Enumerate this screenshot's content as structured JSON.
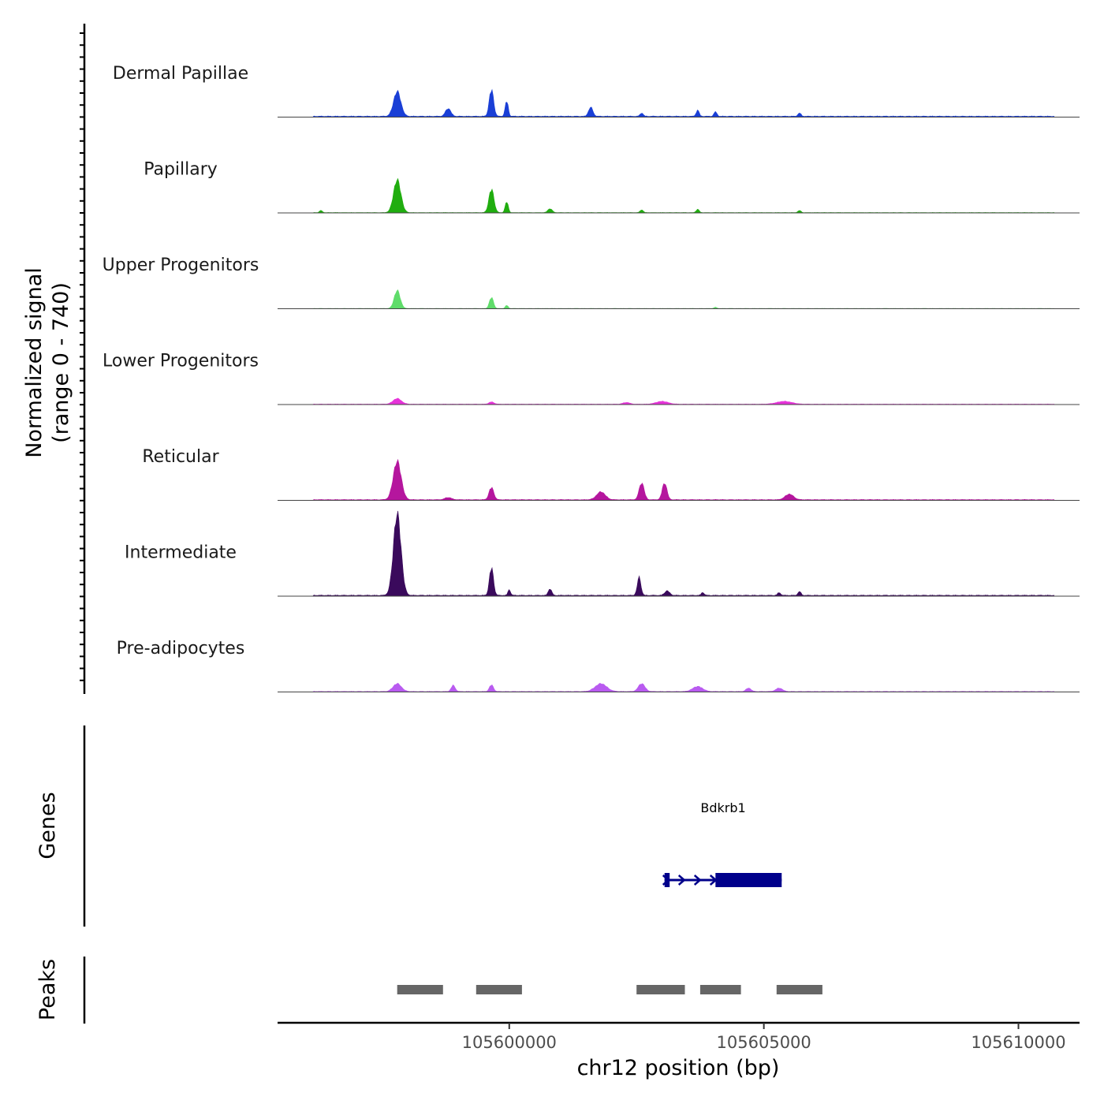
{
  "chart_data": {
    "type": "area",
    "title": "",
    "ylabel": "Normalized signal",
    "ylabel_range": "(range 0 - 740)",
    "ylim": [
      0,
      740
    ],
    "xlabel": "chr12 position (bp)",
    "xlim": [
      105595450,
      105611200
    ],
    "x_ticks": [
      105600000,
      105605000,
      105610000
    ],
    "x_tick_labels": [
      "105600000",
      "105605000",
      "105610000"
    ],
    "tracks": [
      {
        "name": "Dermal Papillae",
        "color": "#1a3fd6",
        "peaks": [
          {
            "x": 105597800,
            "h": 220,
            "w": 220
          },
          {
            "x": 105599650,
            "h": 240,
            "w": 130
          },
          {
            "x": 105599950,
            "h": 140,
            "w": 90
          },
          {
            "x": 105598800,
            "h": 70,
            "w": 160
          },
          {
            "x": 105601600,
            "h": 80,
            "w": 130
          },
          {
            "x": 105603700,
            "h": 55,
            "w": 90
          },
          {
            "x": 105604050,
            "h": 40,
            "w": 90
          },
          {
            "x": 105602600,
            "h": 30,
            "w": 90
          },
          {
            "x": 105605700,
            "h": 30,
            "w": 90
          }
        ],
        "baseline": 10
      },
      {
        "name": "Papillary",
        "color": "#20ad0f",
        "peaks": [
          {
            "x": 105597800,
            "h": 290,
            "w": 220
          },
          {
            "x": 105599650,
            "h": 210,
            "w": 150
          },
          {
            "x": 105599950,
            "h": 100,
            "w": 90
          },
          {
            "x": 105596300,
            "h": 20,
            "w": 80
          },
          {
            "x": 105600800,
            "h": 35,
            "w": 130
          },
          {
            "x": 105602600,
            "h": 25,
            "w": 90
          },
          {
            "x": 105603700,
            "h": 30,
            "w": 90
          },
          {
            "x": 105605700,
            "h": 20,
            "w": 90
          }
        ],
        "baseline": 4
      },
      {
        "name": "Upper Progenitors",
        "color": "#5fdc6a",
        "peaks": [
          {
            "x": 105597800,
            "h": 160,
            "w": 180
          },
          {
            "x": 105599650,
            "h": 100,
            "w": 120
          },
          {
            "x": 105599950,
            "h": 30,
            "w": 80
          },
          {
            "x": 105604050,
            "h": 12,
            "w": 80
          }
        ],
        "baseline": 3
      },
      {
        "name": "Lower Progenitors",
        "color": "#e633d9",
        "peaks": [
          {
            "x": 105597800,
            "h": 50,
            "w": 250
          },
          {
            "x": 105599650,
            "h": 20,
            "w": 150
          },
          {
            "x": 105603000,
            "h": 25,
            "w": 350
          },
          {
            "x": 105605400,
            "h": 25,
            "w": 450
          },
          {
            "x": 105602300,
            "h": 15,
            "w": 200
          }
        ],
        "baseline": 5
      },
      {
        "name": "Reticular",
        "color": "#b5169e",
        "peaks": [
          {
            "x": 105597800,
            "h": 340,
            "w": 240
          },
          {
            "x": 105599650,
            "h": 110,
            "w": 140
          },
          {
            "x": 105601800,
            "h": 70,
            "w": 260
          },
          {
            "x": 105602600,
            "h": 150,
            "w": 150
          },
          {
            "x": 105603050,
            "h": 150,
            "w": 140
          },
          {
            "x": 105605500,
            "h": 50,
            "w": 250
          },
          {
            "x": 105598800,
            "h": 20,
            "w": 200
          }
        ],
        "baseline": 8
      },
      {
        "name": "Intermediate",
        "color": "#3a0a5c",
        "peaks": [
          {
            "x": 105597800,
            "h": 720,
            "w": 230
          },
          {
            "x": 105599650,
            "h": 250,
            "w": 120
          },
          {
            "x": 105600000,
            "h": 50,
            "w": 80
          },
          {
            "x": 105600800,
            "h": 60,
            "w": 100
          },
          {
            "x": 105602550,
            "h": 160,
            "w": 110
          },
          {
            "x": 105603100,
            "h": 40,
            "w": 150
          },
          {
            "x": 105603800,
            "h": 25,
            "w": 90
          },
          {
            "x": 105605700,
            "h": 35,
            "w": 90
          },
          {
            "x": 105605300,
            "h": 25,
            "w": 90
          }
        ],
        "baseline": 10
      },
      {
        "name": "Pre-adipocytes",
        "color": "#b95bf0",
        "peaks": [
          {
            "x": 105597800,
            "h": 70,
            "w": 250
          },
          {
            "x": 105598900,
            "h": 55,
            "w": 120
          },
          {
            "x": 105599650,
            "h": 60,
            "w": 120
          },
          {
            "x": 105601800,
            "h": 70,
            "w": 350
          },
          {
            "x": 105602600,
            "h": 70,
            "w": 200
          },
          {
            "x": 105603700,
            "h": 45,
            "w": 300
          },
          {
            "x": 105604700,
            "h": 30,
            "w": 150
          },
          {
            "x": 105605300,
            "h": 30,
            "w": 200
          }
        ],
        "baseline": 6
      }
    ],
    "genes": [
      {
        "name": "Bdkrb1",
        "color": "#00008b",
        "strand": "+",
        "start": 105603050,
        "end": 105605350,
        "exons": [
          [
            105603050,
            105603150
          ],
          [
            105604050,
            105605350
          ]
        ]
      }
    ],
    "peaks_track": {
      "label": "Peaks",
      "color": "#666666",
      "regions": [
        [
          105597800,
          105598700
        ],
        [
          105599350,
          105600250
        ],
        [
          105602500,
          105603450
        ],
        [
          105603750,
          105604550
        ],
        [
          105605250,
          105606150
        ]
      ]
    },
    "genes_label": "Genes"
  }
}
